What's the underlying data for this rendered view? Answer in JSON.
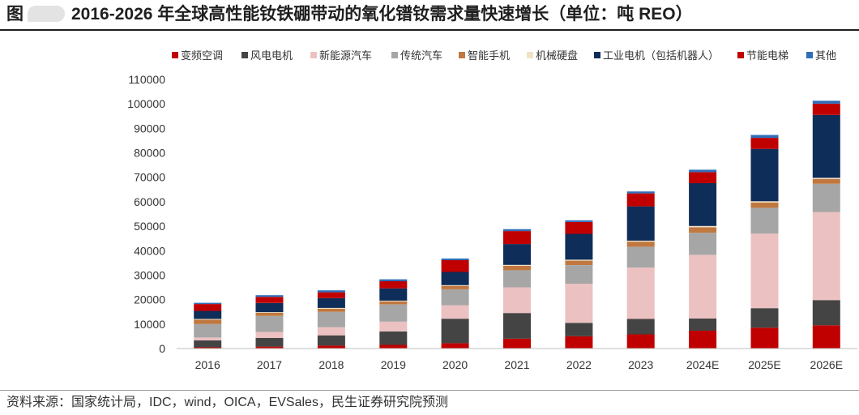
{
  "header": {
    "figure_label": "图",
    "title": "2016-2026 年全球高性能钕铁硼带动的氧化镨钕需求量快速增长（单位：吨 REO）"
  },
  "source": "资料来源：国家统计局，IDC，wind，OICA，EVSales，民生证券研究院预测",
  "chart_data": {
    "type": "bar",
    "stacked": true,
    "categories": [
      "2016",
      "2017",
      "2018",
      "2019",
      "2020",
      "2021",
      "2022",
      "2023",
      "2024E",
      "2025E",
      "2026E"
    ],
    "ylim": [
      0,
      110000
    ],
    "yticks": [
      0,
      10000,
      20000,
      30000,
      40000,
      50000,
      60000,
      70000,
      80000,
      90000,
      100000,
      110000
    ],
    "grid": false,
    "legend_position": "top",
    "series": [
      {
        "name": "变频空调",
        "color": "#C00000",
        "values": [
          500,
          800,
          1200,
          1500,
          2200,
          4000,
          5000,
          5800,
          7300,
          8500,
          9500
        ]
      },
      {
        "name": "风电电机",
        "color": "#444444",
        "values": [
          2800,
          3500,
          4200,
          5500,
          10000,
          10500,
          5500,
          6300,
          5000,
          8000,
          10300
        ]
      },
      {
        "name": "新能源汽车",
        "color": "#ECC1C1",
        "values": [
          1200,
          2500,
          3300,
          4000,
          5500,
          10500,
          16000,
          21000,
          26000,
          30500,
          36000
        ]
      },
      {
        "name": "传统汽车",
        "color": "#A6A6A6",
        "values": [
          5500,
          6500,
          6300,
          7000,
          6500,
          7000,
          7600,
          8500,
          9000,
          10500,
          11500
        ]
      },
      {
        "name": "智能手机",
        "color": "#C07840",
        "values": [
          1800,
          1300,
          1300,
          1300,
          1400,
          1800,
          1800,
          2100,
          2300,
          2200,
          2000
        ]
      },
      {
        "name": "机械硬盘",
        "color": "#F2E2C4",
        "values": [
          300,
          300,
          300,
          300,
          300,
          400,
          400,
          400,
          500,
          500,
          500
        ]
      },
      {
        "name": "工业电机（包括机器人）",
        "color": "#0F2D59",
        "values": [
          3300,
          3700,
          4000,
          5000,
          5400,
          8500,
          10600,
          14000,
          17500,
          21400,
          25700
        ]
      },
      {
        "name": "节能电梯",
        "color": "#C00000",
        "values": [
          2800,
          2500,
          2400,
          2900,
          4800,
          5300,
          4800,
          5300,
          4500,
          4500,
          4600
        ]
      },
      {
        "name": "其他",
        "color": "#2E6EB8",
        "values": [
          500,
          700,
          800,
          800,
          700,
          800,
          700,
          800,
          1000,
          1200,
          1200
        ]
      }
    ]
  }
}
